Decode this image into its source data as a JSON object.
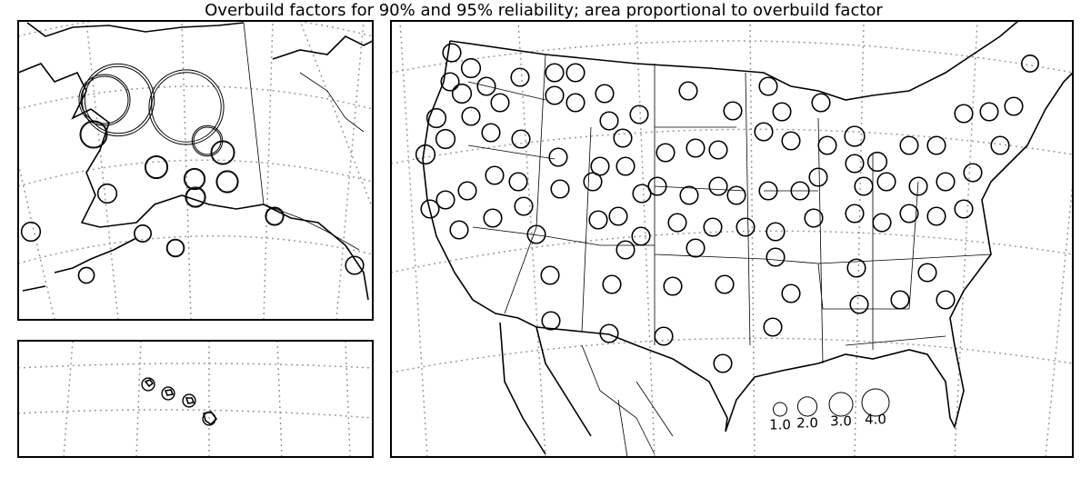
{
  "title": "Overbuild factors for 90% and 95% reliability; area proportional to overbuild factor",
  "legend": [
    {
      "value": 1,
      "label": "1.0"
    },
    {
      "value": 2,
      "label": "2.0"
    },
    {
      "value": 3,
      "label": "3.0"
    },
    {
      "value": 4,
      "label": "4.0"
    }
  ],
  "sites": [
    [
      28,
      24
    ],
    [
      30,
      26
    ],
    [
      14,
      12
    ],
    [
      4,
      3.5
    ],
    [
      5,
      4
    ],
    [
      3,
      2.6
    ],
    [
      2.8,
      2.4
    ],
    [
      2.4,
      2
    ],
    [
      2.6,
      2.2
    ],
    [
      2.2,
      1.8
    ],
    [
      2,
      1.8
    ],
    [
      2,
      1.8
    ],
    [
      1.6,
      1.4
    ],
    [
      1.7,
      1.4
    ],
    [
      1.4,
      1.2
    ],
    [
      1.8,
      1.5
    ],
    [
      1.8,
      1.6
    ],
    [
      0.9,
      0.8
    ],
    [
      0.9,
      0.8
    ],
    [
      0.9,
      0.8
    ],
    [
      0.9,
      0.8
    ],
    [
      1.8,
      1.6
    ],
    [
      2,
      1.8
    ],
    [
      1.8,
      1.6
    ],
    [
      2,
      1.8
    ],
    [
      1.8,
      1.6
    ],
    [
      2,
      1.8
    ],
    [
      1.8,
      1.6
    ],
    [
      2,
      1.8
    ],
    [
      1.8,
      1.6
    ],
    [
      1.8,
      1.6
    ],
    [
      1.8,
      1.6
    ],
    [
      1.8,
      1.6
    ],
    [
      1.8,
      1.6
    ],
    [
      1.8,
      1.6
    ],
    [
      1.8,
      1.6
    ],
    [
      1.8,
      1.6
    ],
    [
      1.8,
      1.6
    ],
    [
      1.8,
      1.6
    ],
    [
      1.8,
      1.6
    ],
    [
      1.8,
      1.6
    ],
    [
      1.8,
      1.6
    ],
    [
      1.8,
      1.6
    ],
    [
      1.8,
      1.6
    ],
    [
      1.8,
      1.6
    ],
    [
      1.8,
      1.6
    ],
    [
      2,
      1.8
    ],
    [
      1.8,
      1.6
    ],
    [
      1.8,
      1.6
    ],
    [
      1.8,
      1.6
    ],
    [
      1.8,
      1.6
    ],
    [
      1.8,
      1.6
    ],
    [
      1.8,
      1.6
    ],
    [
      1.8,
      1.6
    ],
    [
      1.8,
      1.6
    ],
    [
      1.8,
      1.6
    ],
    [
      2.2,
      2
    ],
    [
      2,
      1.8
    ],
    [
      1.8,
      1.6
    ],
    [
      1.8,
      1.6
    ],
    [
      1.8,
      1.6
    ],
    [
      1.8,
      1.6
    ],
    [
      1.8,
      1.6
    ],
    [
      1.8,
      1.6
    ],
    [
      1.6,
      1.4
    ],
    [
      1.8,
      1.6
    ],
    [
      1.8,
      1.6
    ],
    [
      1.8,
      1.6
    ],
    [
      1.8,
      1.6
    ],
    [
      1.8,
      1.6
    ],
    [
      1.8,
      1.6
    ],
    [
      1.8,
      1.6
    ],
    [
      1.8,
      1.6
    ],
    [
      1.8,
      1.6
    ],
    [
      1.8,
      1.6
    ],
    [
      1.8,
      1.6
    ],
    [
      1.8,
      1.6
    ],
    [
      1.8,
      1.6
    ],
    [
      1.8,
      1.6
    ],
    [
      1.8,
      1.6
    ],
    [
      1.8,
      1.6
    ],
    [
      1.8,
      1.6
    ],
    [
      1.8,
      1.6
    ],
    [
      1.8,
      1.6
    ],
    [
      1.8,
      1.6
    ],
    [
      1.8,
      1.6
    ],
    [
      1.8,
      1.6
    ],
    [
      1.8,
      1.6
    ],
    [
      1.8,
      1.6
    ],
    [
      1.8,
      1.6
    ],
    [
      1.8,
      1.6
    ],
    [
      1.8,
      1.6
    ],
    [
      1.8,
      1.6
    ],
    [
      1.8,
      1.6
    ],
    [
      1.8,
      1.6
    ],
    [
      1.8,
      1.6
    ],
    [
      1.8,
      1.6
    ],
    [
      1.8,
      1.6
    ],
    [
      1.8,
      1.6
    ],
    [
      1.8,
      1.6
    ],
    [
      1.8,
      1.6
    ],
    [
      1.8,
      1.6
    ],
    [
      1.8,
      1.6
    ],
    [
      1.8,
      1.6
    ],
    [
      1.8,
      1.6
    ],
    [
      1.8,
      1.6
    ],
    [
      1.8,
      1.6
    ],
    [
      1.8,
      1.6
    ],
    [
      1.8,
      1.6
    ],
    [
      1.8,
      1.6
    ],
    [
      1.8,
      1.6
    ],
    [
      1.8,
      1.6
    ],
    [
      1.8,
      1.6
    ],
    [
      1.8,
      1.6
    ],
    [
      1.8,
      1.6
    ],
    [
      1.8,
      1.6
    ],
    [
      1.8,
      1.6
    ],
    [
      1.8,
      1.6
    ],
    [
      1.8,
      1.6
    ],
    [
      1.8,
      1.6
    ],
    [
      1.8,
      1.6
    ]
  ]
}
